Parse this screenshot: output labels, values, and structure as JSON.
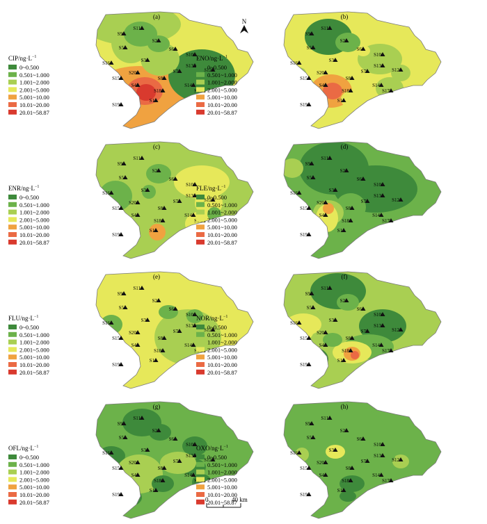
{
  "colors": [
    "#3e8a3b",
    "#6cb24a",
    "#a9cf52",
    "#e6e85a",
    "#f0a240",
    "#ea6a44",
    "#d93a2e"
  ],
  "legend_ranges": [
    "0~0.500",
    "0.501~1.000",
    "1.001~2.000",
    "2.001~5.000",
    "5.001~10.00",
    "10.01~20.00",
    "20.01~58.87"
  ],
  "north_label": "N",
  "scale_bar": {
    "start": "0",
    "end": "40 km"
  },
  "panels": [
    {
      "label": "(a)",
      "compound": "CIP/ng·L",
      "unit_exp": "−1",
      "base": 3
    },
    {
      "label": "(b)",
      "compound": "ENO/ng·L",
      "unit_exp": "−1",
      "base": 3
    },
    {
      "label": "(c)",
      "compound": "ENR/ng·L",
      "unit_exp": "−1",
      "base": 2
    },
    {
      "label": "(d)",
      "compound": "FLE/ng·L",
      "unit_exp": "−1",
      "base": 1
    },
    {
      "label": "(e)",
      "compound": "FLU/ng·L",
      "unit_exp": "−1",
      "base": 3
    },
    {
      "label": "(f)",
      "compound": "NOR/ng·L",
      "unit_exp": "−1",
      "base": 2
    },
    {
      "label": "(g)",
      "compound": "OFL/ng·L",
      "unit_exp": "−1",
      "base": 1
    },
    {
      "label": "(h)",
      "compound": "OXO/ng·L",
      "unit_exp": "−1",
      "base": 1
    }
  ],
  "sites": [
    "S1",
    "S2",
    "S3",
    "S4",
    "S5",
    "S6",
    "S7",
    "S8",
    "S9",
    "S10",
    "S11",
    "S12",
    "S13",
    "S14",
    "S15",
    "S16",
    "S17",
    "S18",
    "S19",
    "S20"
  ]
}
